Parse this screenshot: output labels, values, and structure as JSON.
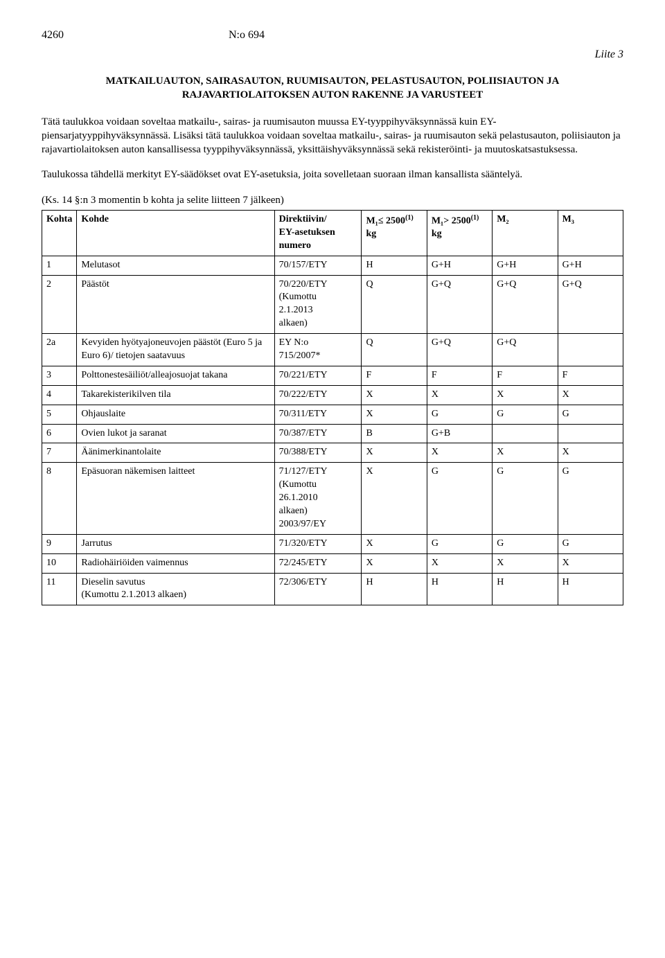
{
  "header": {
    "page_number": "4260",
    "doc_number": "N:o 694",
    "liite": "Liite 3"
  },
  "title": "MATKAILUAUTON, SAIRASAUTON, RUUMISAUTON, PELASTUSAUTON, POLIISIAUTON JA RAJAVARTIOLAITOKSEN AUTON RAKENNE JA VARUSTEET",
  "para1": "Tätä taulukkoa voidaan soveltaa matkailu-, sairas- ja ruumisauton muussa EY-tyyppihyväksynnässä kuin EY-piensarjatyyppihyväksynnässä. Lisäksi tätä taulukkoa voidaan soveltaa matkailu-, sairas- ja ruumisauton sekä pelastusauton, poliisiauton ja rajavartiolaitoksen auton kansallisessa tyyppihyväksynnässä, yksittäishyväksynnässä sekä rekisteröinti- ja muutoskatsastuksessa.",
  "para2": "Taulukossa tähdellä merkityt EY-säädökset ovat EY-asetuksia, joita sovelletaan suoraan ilman kansallista sääntelyä.",
  "ks_line": "(Ks. 14 §:n 3 momentin b kohta ja selite liitteen 7 jälkeen)",
  "columns": {
    "kohta": "Kohta",
    "kohde": "Kohde",
    "dir": "Direktiivin/\nEY-asetuksen\nnumero",
    "m1le": "M₁≤ 2500",
    "m1le_sup": "(1)",
    "m1le_unit": "kg",
    "m1gt": "M₁> 2500",
    "m1gt_sup": "(1)",
    "m1gt_unit": "kg",
    "m2": "M₂",
    "m3": "M₃"
  },
  "rows": [
    {
      "kohta": "1",
      "kohde": "Melutasot",
      "dir": "70/157/ETY",
      "m1le": "H",
      "m1gt": "G+H",
      "m2": "G+H",
      "m3": "G+H"
    },
    {
      "kohta": "2",
      "kohde": "Päästöt",
      "dir": "70/220/ETY\n(Kumottu\n2.1.2013\nalkaen)",
      "m1le": "Q",
      "m1gt": "G+Q",
      "m2": "G+Q",
      "m3": "G+Q"
    },
    {
      "kohta": "2a",
      "kohde": "Kevyiden hyötyajoneuvojen päästöt (Euro 5 ja Euro 6)/ tietojen saatavuus",
      "dir": "EY N:o\n715/2007*",
      "m1le": "Q",
      "m1gt": "G+Q",
      "m2": "G+Q",
      "m3": ""
    },
    {
      "kohta": "3",
      "kohde": "Polttonestesäiliöt/alleajosuojat takana",
      "dir": "70/221/ETY",
      "m1le": "F",
      "m1gt": "F",
      "m2": "F",
      "m3": "F"
    },
    {
      "kohta": "4",
      "kohde": "Takarekisterikilven tila",
      "dir": "70/222/ETY",
      "m1le": "X",
      "m1gt": "X",
      "m2": "X",
      "m3": "X"
    },
    {
      "kohta": "5",
      "kohde": "Ohjauslaite",
      "dir": "70/311/ETY",
      "m1le": "X",
      "m1gt": "G",
      "m2": "G",
      "m3": "G"
    },
    {
      "kohta": "6",
      "kohde": "Ovien lukot ja saranat",
      "dir": "70/387/ETY",
      "m1le": "B",
      "m1gt": "G+B",
      "m2": "",
      "m3": ""
    },
    {
      "kohta": "7",
      "kohde": "Äänimerkinantolaite",
      "dir": "70/388/ETY",
      "m1le": "X",
      "m1gt": "X",
      "m2": "X",
      "m3": "X"
    },
    {
      "kohta": "8",
      "kohde": "Epäsuoran näkemisen laitteet",
      "dir": "71/127/ETY\n(Kumottu\n26.1.2010\nalkaen)\n2003/97/EY",
      "m1le": "X",
      "m1gt": "G",
      "m2": "G",
      "m3": "G"
    },
    {
      "kohta": "9",
      "kohde": "Jarrutus",
      "dir": "71/320/ETY",
      "m1le": "X",
      "m1gt": "G",
      "m2": "G",
      "m3": "G"
    },
    {
      "kohta": "10",
      "kohde": "Radiohäiriöiden vaimennus",
      "dir": "72/245/ETY",
      "m1le": "X",
      "m1gt": "X",
      "m2": "X",
      "m3": "X"
    },
    {
      "kohta": "11",
      "kohde": "Dieselin savutus\n(Kumottu 2.1.2013 alkaen)",
      "dir": "72/306/ETY",
      "m1le": "H",
      "m1gt": "H",
      "m2": "H",
      "m3": "H"
    }
  ]
}
